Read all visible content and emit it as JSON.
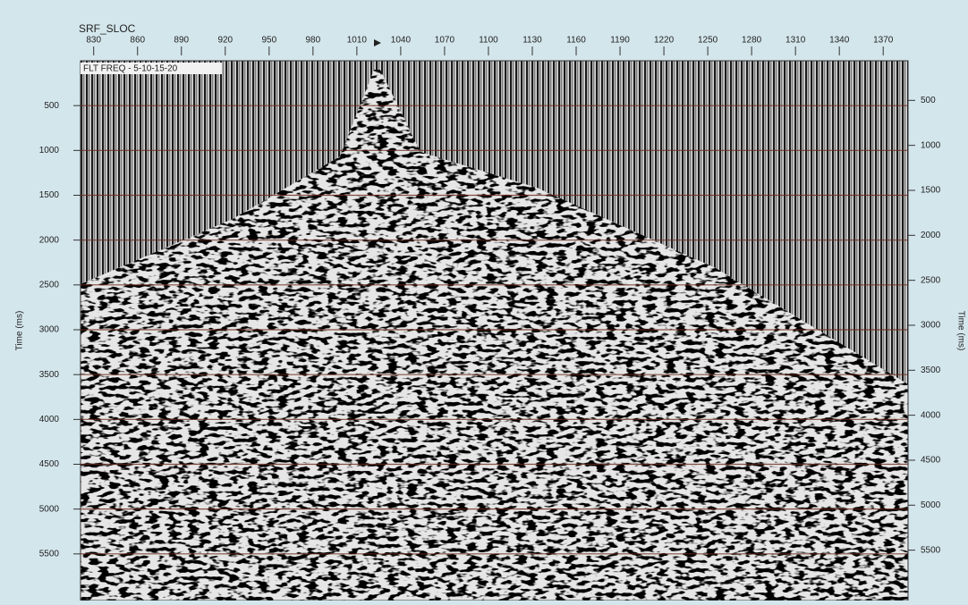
{
  "chart_data": {
    "type": "seismic",
    "title": "FLT FREQ - 5-10-15-20",
    "xlabel": "SRF_SLOC",
    "ylabel": "Time (ms)",
    "y2label": "Time (ms)",
    "xlim": [
      821,
      1387
    ],
    "xticks": [
      830,
      860,
      890,
      920,
      950,
      980,
      1010,
      1040,
      1070,
      1100,
      1130,
      1160,
      1190,
      1220,
      1250,
      1280,
      1310,
      1340,
      1370
    ],
    "ylim": [
      0,
      6020
    ],
    "yticks": [
      500,
      1000,
      1500,
      2000,
      2500,
      3000,
      3500,
      4000,
      4500,
      5000,
      5500
    ],
    "y2lim": [
      0,
      6060
    ],
    "y2ticks": [
      500,
      1000,
      1500,
      2000,
      2500,
      3000,
      3500,
      4000,
      4500,
      5000,
      5500
    ],
    "grid": true
  }
}
